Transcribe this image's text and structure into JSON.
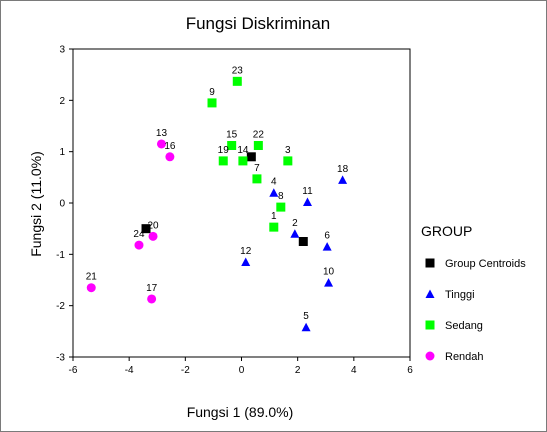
{
  "chart_data": {
    "type": "scatter",
    "title": "Fungsi Diskriminan",
    "xlabel": "Fungsi 1 (89.0%)",
    "ylabel": "Fungsi 2 (11.0%)",
    "xlim": [
      -6,
      6
    ],
    "ylim": [
      -3,
      3
    ],
    "xticks": [
      "-6",
      "-4",
      "-2",
      "0",
      "2",
      "4",
      "6"
    ],
    "yticks": [
      "3",
      "2",
      "1",
      "0",
      "-1",
      "-2",
      "-3"
    ],
    "grid": false,
    "legend": {
      "title": "GROUP",
      "placement": "right",
      "entries": [
        {
          "name": "Group Centroids",
          "marker": "square",
          "color": "#000000"
        },
        {
          "name": "Tinggi",
          "marker": "triangle",
          "color": "#0000ff"
        },
        {
          "name": "Sedang",
          "marker": "square",
          "color": "#00ff00"
        },
        {
          "name": "Rendah",
          "marker": "circle",
          "color": "#ff00ff"
        }
      ]
    },
    "series": [
      {
        "name": "Group Centroids",
        "marker": "square",
        "color": "#000000",
        "points": [
          {
            "x": -3.4,
            "y": -0.5,
            "label": ""
          },
          {
            "x": 0.35,
            "y": 0.9,
            "label": ""
          },
          {
            "x": 2.2,
            "y": -0.75,
            "label": ""
          }
        ]
      },
      {
        "name": "Tinggi",
        "marker": "triangle",
        "color": "#0000ff",
        "points": [
          {
            "x": 1.15,
            "y": 0.2,
            "label": "4"
          },
          {
            "x": 3.6,
            "y": 0.45,
            "label": "18"
          },
          {
            "x": 2.35,
            "y": 0.02,
            "label": "11"
          },
          {
            "x": 1.9,
            "y": -0.6,
            "label": "2"
          },
          {
            "x": 3.05,
            "y": -0.85,
            "label": "6"
          },
          {
            "x": 0.15,
            "y": -1.15,
            "label": "12"
          },
          {
            "x": 3.1,
            "y": -1.55,
            "label": "10"
          },
          {
            "x": 2.3,
            "y": -2.42,
            "label": "5"
          }
        ]
      },
      {
        "name": "Sedang",
        "marker": "square",
        "color": "#00ff00",
        "points": [
          {
            "x": -0.15,
            "y": 2.37,
            "label": "23"
          },
          {
            "x": -1.05,
            "y": 1.95,
            "label": "9"
          },
          {
            "x": -0.35,
            "y": 1.12,
            "label": "15"
          },
          {
            "x": 0.6,
            "y": 1.12,
            "label": "22"
          },
          {
            "x": -0.65,
            "y": 0.82,
            "label": "19"
          },
          {
            "x": 0.05,
            "y": 0.82,
            "label": "14"
          },
          {
            "x": 1.65,
            "y": 0.82,
            "label": "3"
          },
          {
            "x": 0.55,
            "y": 0.47,
            "label": "7"
          },
          {
            "x": 1.4,
            "y": -0.08,
            "label": "8"
          },
          {
            "x": 1.15,
            "y": -0.47,
            "label": "1"
          }
        ]
      },
      {
        "name": "Rendah",
        "marker": "circle",
        "color": "#ff00ff",
        "points": [
          {
            "x": -2.85,
            "y": 1.15,
            "label": "13"
          },
          {
            "x": -2.55,
            "y": 0.9,
            "label": "16"
          },
          {
            "x": -3.15,
            "y": -0.65,
            "label": "20"
          },
          {
            "x": -3.65,
            "y": -0.82,
            "label": "24"
          },
          {
            "x": -5.35,
            "y": -1.65,
            "label": "21"
          },
          {
            "x": -3.2,
            "y": -1.87,
            "label": "17"
          }
        ]
      }
    ]
  }
}
